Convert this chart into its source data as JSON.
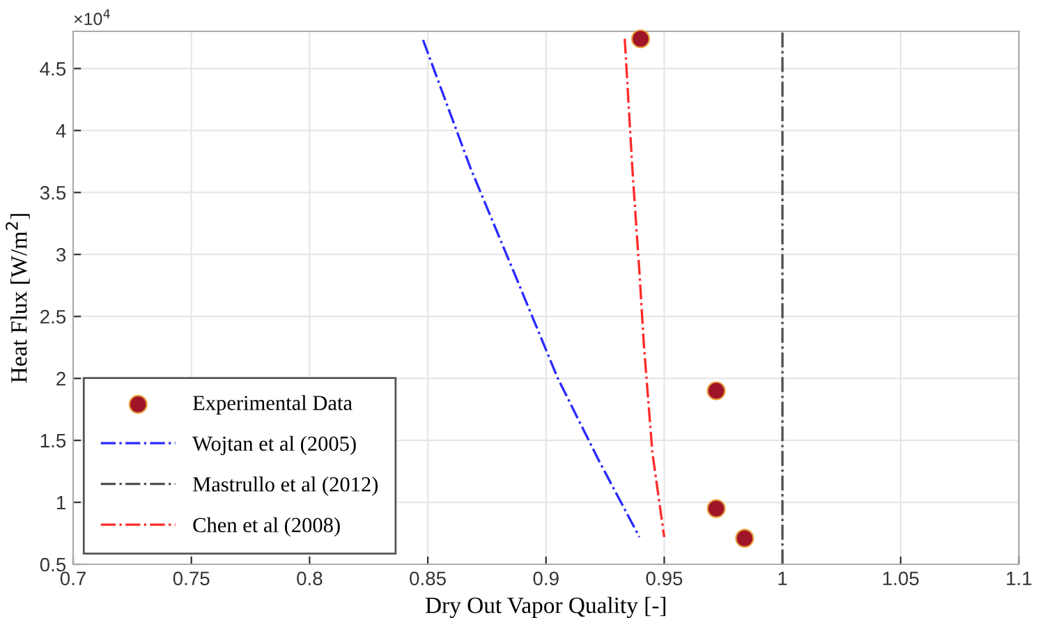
{
  "chart_data": {
    "type": "line",
    "xlabel": "Dry Out Vapor Quality [-]",
    "ylabel": "Heat Flux [W/m$^{2}$]",
    "annotations": [
      "×10$^{4}$"
    ],
    "series": [
      {
        "name": "Experimental Data",
        "type": "scatter",
        "marker": "circle",
        "color": "#a01428",
        "x": [
          0.94,
          0.972,
          0.972,
          0.984
        ],
        "values": [
          4.74,
          1.9,
          0.95,
          0.71
        ]
      },
      {
        "name": "Wojtan et al (2005)",
        "line_style": "dashdot",
        "color": "#2a2aff",
        "x": [
          0.848,
          0.868,
          0.887,
          0.905,
          0.922,
          0.9395
        ],
        "values": [
          4.73,
          3.7,
          2.83,
          2.0,
          1.35,
          0.72
        ]
      },
      {
        "name": "Mastrullo et al (2012)",
        "line_style": "dashdot",
        "color": "#505050",
        "x": [
          1,
          1
        ],
        "values": [
          0.5,
          4.8
        ]
      },
      {
        "name": "Chen et al (2008)",
        "line_style": "dashdot",
        "color": "#ff2a2a",
        "x": [
          0.9333,
          0.9365,
          0.9395,
          0.9414,
          0.945,
          0.95
        ],
        "values": [
          4.74,
          3.7,
          2.86,
          2.27,
          1.4,
          0.72
        ]
      }
    ],
    "xlim": [
      0.7,
      1.1
    ],
    "xticks": [
      0.7,
      0.75,
      0.8,
      0.85,
      0.9,
      0.95,
      1,
      1.05,
      1.1
    ],
    "ylim": [
      0.5,
      4.8
    ],
    "yticks": [
      0.5,
      1,
      1.5,
      2,
      2.5,
      3,
      3.5,
      4,
      4.5
    ],
    "grid": true,
    "legend": "bottom left"
  }
}
